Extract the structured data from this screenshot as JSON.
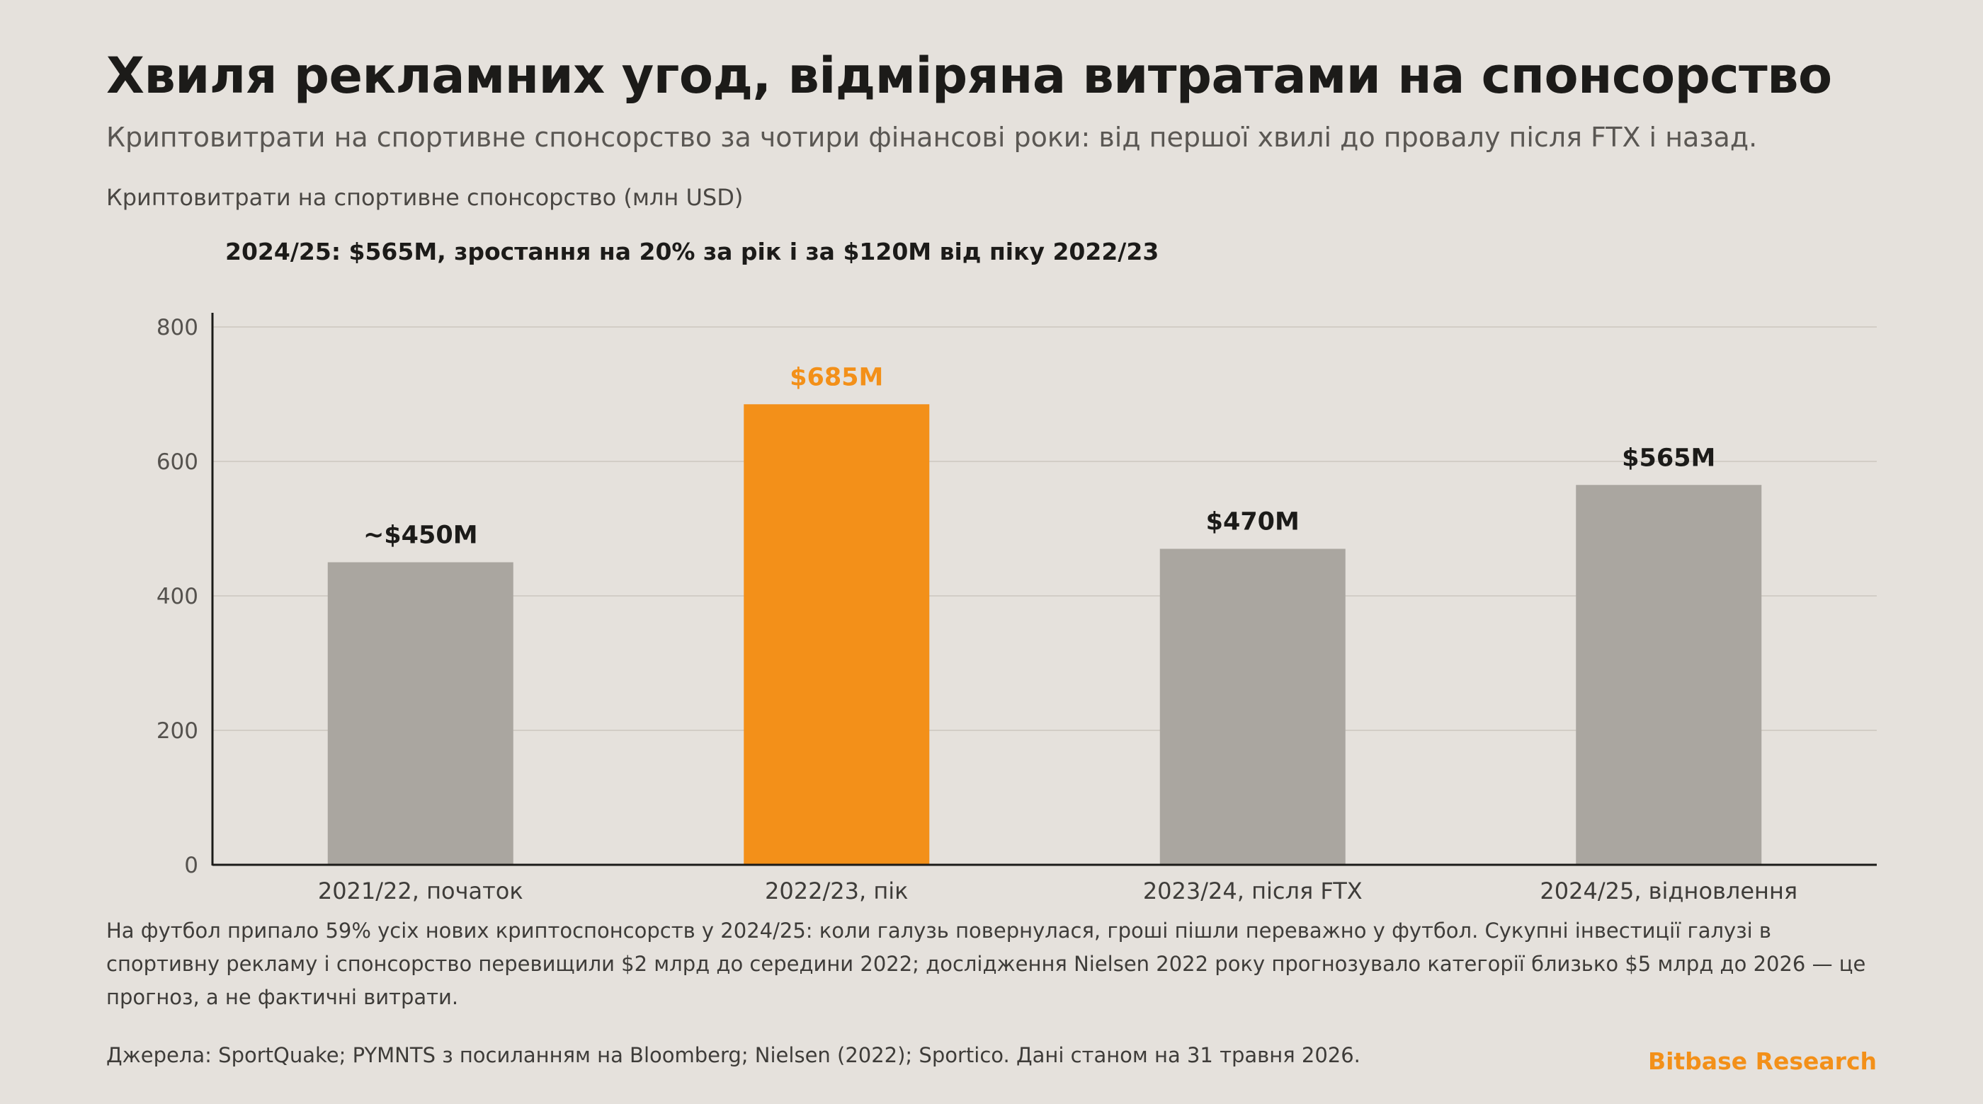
{
  "header": {
    "title": "Хвиля рекламних угод, відміряна витратами на спонсорство",
    "subtitle": "Криптовитрати на спортивне спонсорство за чотири фінансові роки: від першої хвилі до провалу після FTX і назад."
  },
  "colors": {
    "highlight": "#f39019",
    "bar": "#aaa6a0",
    "background": "#e5e1dc",
    "grid": "#d2cdc6",
    "text": "#1c1b19"
  },
  "chart_data": {
    "type": "bar",
    "ylabel": "Криптовитрати на спортивне спонсорство (млн USD)",
    "annotation": "2024/25: $565M, зростання на 20% за рік і за $120M від піку 2022/23",
    "categories": [
      "2021/22, початок",
      "2022/23, пік",
      "2023/24, після FTX",
      "2024/25, відновлення"
    ],
    "values": [
      450,
      685,
      470,
      565
    ],
    "data_labels": [
      "~$450M",
      "$685M",
      "$470M",
      "$565M"
    ],
    "highlight_index": 1,
    "ylim": [
      0,
      800
    ],
    "yticks": [
      0,
      200,
      400,
      600,
      800
    ],
    "grid": true,
    "legend": "none"
  },
  "footer": {
    "note": "На футбол припало 59% усіх нових криптоспонсорств у 2024/25: коли галузь повернулася, гроші пішли переважно у футбол. Сукупні інвестиції галузі в спортивну рекламу і спонсорство перевищили $2 млрд до середини 2022; дослідження Nielsen 2022 року прогнозувало категорії близько $5 млрд до 2026 — це прогноз, а не фактичні витрати.",
    "sources": "Джерела: SportQuake; PYMNTS з посиланням на Bloomberg; Nielsen (2022); Sportico. Дані станом на 31 травня 2026.",
    "brand": "Bitbase Research"
  }
}
